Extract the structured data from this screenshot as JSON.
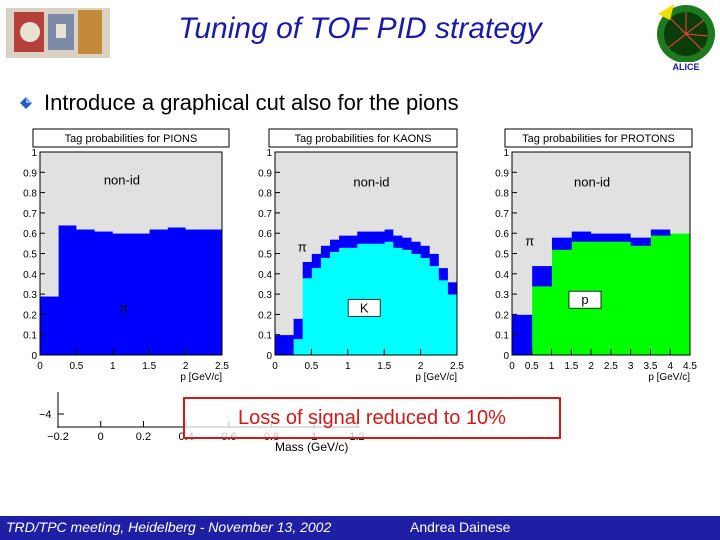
{
  "slide": {
    "title": "Tuning of TOF PID strategy",
    "bullet": "Introduce a graphical cut also for the pions",
    "callout": "Loss of signal reduced to 10%",
    "background_plot": {
      "y_tick": "−4",
      "x_ticks": [
        "−0.2",
        "0",
        "0.2",
        "0.4",
        "0.6",
        "0.8",
        "1",
        "1.2"
      ],
      "x_label": "Mass (GeV/c)"
    },
    "footer": {
      "left": "TRD/TPC meeting, Heidelberg - November 13, 2002",
      "right": "Andrea Dainese"
    }
  },
  "colors": {
    "title": "#1a1aa8",
    "footer_bg": "#1f1fa5",
    "non_id": "#e1e1e1",
    "pion": "#0000ff",
    "kaon": "#00ffff",
    "proton": "#00ff00",
    "callout": "#d01a1a"
  },
  "chart_data": [
    {
      "type": "bar",
      "stacked": true,
      "title": "Tag probabilities for PIONS",
      "xlabel": "p [GeV/c]",
      "xlim": [
        0,
        2.5
      ],
      "ylim": [
        0,
        1
      ],
      "x_ticks": [
        "0",
        "0.5",
        "1",
        "1.5",
        "2",
        "2.5"
      ],
      "y_ticks": [
        "0",
        "0.1",
        "0.2",
        "0.3",
        "0.4",
        "0.5",
        "0.6",
        "0.7",
        "0.8",
        "0.9",
        "1"
      ],
      "bin_edges": [
        0,
        0.25,
        0.5,
        0.75,
        1.0,
        1.25,
        1.5,
        1.75,
        2.0,
        2.25,
        2.5
      ],
      "series": [
        {
          "label": "π",
          "color": "#0000ff",
          "values": [
            0.29,
            0.64,
            0.62,
            0.61,
            0.6,
            0.6,
            0.62,
            0.63,
            0.62,
            0.62
          ]
        },
        {
          "label": "non-id",
          "color": "#e1e1e1",
          "values": [
            0.71,
            0.36,
            0.38,
            0.39,
            0.4,
            0.4,
            0.38,
            0.37,
            0.38,
            0.38
          ]
        }
      ]
    },
    {
      "type": "bar",
      "stacked": true,
      "title": "Tag probabilities for KAONS",
      "xlabel": "p [GeV/c]",
      "xlim": [
        0,
        2.5
      ],
      "ylim": [
        0,
        1
      ],
      "x_ticks": [
        "0",
        "0.5",
        "1",
        "1.5",
        "2",
        "2.5"
      ],
      "y_ticks": [
        "0",
        "0.1",
        "0.2",
        "0.3",
        "0.4",
        "0.5",
        "0.6",
        "0.7",
        "0.8",
        "0.9",
        "1"
      ],
      "bin_edges": [
        0,
        0.125,
        0.25,
        0.375,
        0.5,
        0.625,
        0.75,
        0.875,
        1.0,
        1.125,
        1.25,
        1.375,
        1.5,
        1.625,
        1.75,
        1.875,
        2.0,
        2.125,
        2.25,
        2.375,
        2.5
      ],
      "series": [
        {
          "label": "K",
          "color": "#00ffff",
          "values": [
            0,
            0,
            0.08,
            0.38,
            0.43,
            0.48,
            0.51,
            0.53,
            0.53,
            0.55,
            0.55,
            0.55,
            0.56,
            0.53,
            0.52,
            0.5,
            0.48,
            0.44,
            0.37,
            0.3
          ]
        },
        {
          "label": "π",
          "color": "#0000ff",
          "values": [
            0.1,
            0.1,
            0.1,
            0.08,
            0.07,
            0.06,
            0.06,
            0.06,
            0.06,
            0.06,
            0.06,
            0.06,
            0.06,
            0.06,
            0.06,
            0.06,
            0.06,
            0.06,
            0.06,
            0.06
          ]
        },
        {
          "label": "non-id",
          "color": "#e1e1e1",
          "values": [
            0.9,
            0.9,
            0.82,
            0.54,
            0.5,
            0.46,
            0.43,
            0.41,
            0.41,
            0.39,
            0.39,
            0.39,
            0.38,
            0.41,
            0.42,
            0.44,
            0.46,
            0.5,
            0.57,
            0.64
          ]
        }
      ]
    },
    {
      "type": "bar",
      "stacked": true,
      "title": "Tag probabilities for PROTONS",
      "xlabel": "p [GeV/c]",
      "xlim": [
        0,
        4.5
      ],
      "ylim": [
        0,
        1
      ],
      "x_ticks": [
        "0",
        "0.5",
        "1",
        "1.5",
        "2",
        "2.5",
        "3",
        "3.5",
        "4",
        "4.5"
      ],
      "y_ticks": [
        "0",
        "0.1",
        "0.2",
        "0.3",
        "0.4",
        "0.5",
        "0.6",
        "0.7",
        "0.8",
        "0.9",
        "1"
      ],
      "bin_edges": [
        0,
        0.5,
        1.0,
        1.5,
        2.0,
        2.5,
        3.0,
        3.5,
        4.0,
        4.5
      ],
      "series": [
        {
          "label": "p",
          "color": "#00ff00",
          "values": [
            0,
            0.34,
            0.52,
            0.56,
            0.56,
            0.56,
            0.54,
            0.59,
            0.6
          ]
        },
        {
          "label": "π",
          "color": "#0000ff",
          "values": [
            0.2,
            0.1,
            0.06,
            0.05,
            0.04,
            0.04,
            0.04,
            0.03,
            0
          ]
        },
        {
          "label": "non-id",
          "color": "#e1e1e1",
          "values": [
            0.8,
            0.56,
            0.42,
            0.39,
            0.4,
            0.4,
            0.42,
            0.38,
            0.4
          ]
        }
      ]
    }
  ]
}
